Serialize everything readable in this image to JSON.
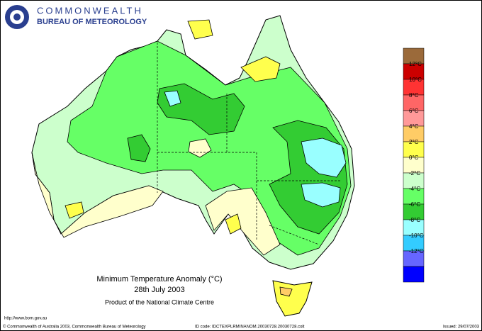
{
  "header": {
    "org_line1": "COMMONWEALTH",
    "org_line2": "BUREAU OF METEOROLOGY"
  },
  "title": {
    "line1": "Minimum Temperature Anomaly (°C)",
    "line2": "28th July 2003",
    "line3": "Product of the National Climate Centre"
  },
  "legend": {
    "colors": [
      "#9b6a3a",
      "#cc0000",
      "#ff3333",
      "#ff6666",
      "#ff9999",
      "#ffcc66",
      "#ffff4d",
      "#ffffcc",
      "#ccffcc",
      "#66ff66",
      "#33cc33",
      "#99ffff",
      "#33ccff",
      "#6666ff",
      "#0000ff"
    ],
    "labels": [
      "12°C",
      "10°C",
      "8°C",
      "6°C",
      "4°C",
      "2°C",
      "0°C",
      "-2°C",
      "-4°C",
      "-6°C",
      "-8°C",
      "-10°C",
      "-12°C"
    ]
  },
  "footer": {
    "url": "http://www.bom.gov.au",
    "copyright": "© Commonwealth of Australia 2003, Commonwealth Bureau of Meteorology",
    "id_code": "ID code: IDCTEXPLRMINANOM.20030728.20030728.colt",
    "issued": "Issued: 29/07/2003"
  }
}
